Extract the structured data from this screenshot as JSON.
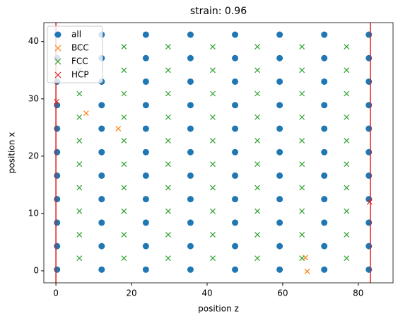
{
  "chart_data": {
    "type": "scatter",
    "title": "strain: 0.96",
    "xlabel": "position z",
    "ylabel": "position x",
    "xlim": [
      -3.2,
      89.2
    ],
    "ylim": [
      -2.1,
      43.3
    ],
    "xticks": [
      0,
      20,
      40,
      60,
      80
    ],
    "yticks": [
      0,
      10,
      20,
      30,
      40
    ],
    "legend": "upper left",
    "vlines": [
      0,
      83.2
    ],
    "vline_color": "#d62020",
    "series": [
      {
        "name": "all",
        "marker": "o",
        "color": "#1f77b4",
        "x": [
          0.3,
          12.1,
          23.8,
          35.6,
          47.4,
          59.2,
          71.0,
          82.8,
          0.3,
          12.1,
          23.8,
          35.6,
          47.4,
          59.2,
          71.0,
          82.8,
          0.3,
          12.1,
          23.8,
          35.6,
          47.4,
          59.2,
          71.0,
          82.8,
          0.3,
          12.1,
          23.8,
          35.6,
          47.4,
          59.2,
          71.0,
          82.8,
          0.3,
          12.1,
          23.8,
          35.6,
          47.4,
          59.2,
          71.0,
          82.8,
          0.3,
          12.1,
          23.8,
          35.6,
          47.4,
          59.2,
          71.0,
          82.8,
          0.3,
          12.1,
          23.8,
          35.6,
          47.4,
          59.2,
          71.0,
          82.8,
          0.3,
          12.1,
          23.8,
          35.6,
          47.4,
          59.2,
          71.0,
          82.8,
          0.3,
          12.1,
          23.8,
          35.6,
          47.4,
          59.2,
          71.0,
          82.8,
          0.3,
          12.1,
          23.8,
          35.6,
          47.4,
          59.2,
          71.0,
          82.8,
          0.3,
          12.1,
          23.8,
          35.6,
          47.4,
          59.2,
          71.0,
          82.8
        ],
        "y": [
          0.2,
          0.2,
          0.2,
          0.2,
          0.2,
          0.2,
          0.2,
          0.2,
          4.3,
          4.3,
          4.3,
          4.3,
          4.3,
          4.3,
          4.3,
          4.3,
          8.4,
          8.4,
          8.4,
          8.4,
          8.4,
          8.4,
          8.4,
          8.4,
          12.5,
          12.5,
          12.5,
          12.5,
          12.5,
          12.5,
          12.5,
          12.5,
          16.6,
          16.6,
          16.6,
          16.6,
          16.6,
          16.6,
          16.6,
          16.6,
          20.7,
          20.7,
          20.7,
          20.7,
          20.7,
          20.7,
          20.7,
          20.7,
          24.8,
          24.8,
          24.8,
          24.8,
          24.8,
          24.8,
          24.8,
          24.8,
          28.9,
          28.9,
          28.9,
          28.9,
          28.9,
          28.9,
          28.9,
          28.9,
          33.0,
          33.0,
          33.0,
          33.0,
          33.0,
          33.0,
          33.0,
          33.0,
          37.1,
          37.1,
          37.1,
          37.1,
          37.1,
          37.1,
          37.1,
          37.1,
          41.2,
          41.2,
          41.2,
          41.2,
          41.2,
          41.2,
          41.2,
          41.2
        ]
      },
      {
        "name": "BCC",
        "marker": "x",
        "color": "#ff7f0e",
        "x": [
          8.0,
          16.5,
          66.0,
          66.5
        ],
        "y": [
          27.5,
          24.8,
          2.3,
          -0.1
        ]
      },
      {
        "name": "FCC",
        "marker": "x",
        "color": "#2ca02c",
        "x": [
          6.2,
          18.0,
          29.7,
          41.5,
          53.3,
          65.1,
          76.9,
          6.2,
          18.0,
          29.7,
          41.5,
          53.3,
          65.1,
          76.9,
          6.2,
          18.0,
          29.7,
          41.5,
          53.3,
          65.1,
          76.9,
          6.2,
          18.0,
          29.7,
          41.5,
          53.3,
          65.1,
          76.9,
          6.2,
          18.0,
          29.7,
          41.5,
          53.3,
          65.1,
          76.9,
          6.2,
          18.0,
          29.7,
          41.5,
          53.3,
          65.1,
          76.9,
          6.2,
          18.0,
          29.7,
          41.5,
          53.3,
          65.1,
          76.9,
          6.2,
          18.0,
          29.7,
          41.5,
          53.3,
          65.1,
          76.9,
          6.2,
          18.0,
          29.7,
          41.5,
          53.3,
          65.1,
          76.9,
          6.2,
          18.0,
          29.7,
          41.5,
          53.3,
          65.1,
          76.9
        ],
        "y": [
          2.2,
          2.2,
          2.2,
          2.2,
          2.2,
          2.2,
          2.2,
          6.3,
          6.3,
          6.3,
          6.3,
          6.3,
          6.3,
          6.3,
          10.4,
          10.4,
          10.4,
          10.4,
          10.4,
          10.4,
          10.4,
          14.5,
          14.5,
          14.5,
          14.5,
          14.5,
          14.5,
          14.5,
          18.6,
          18.6,
          18.6,
          18.6,
          18.6,
          18.6,
          18.6,
          22.7,
          22.7,
          22.7,
          22.7,
          22.7,
          22.7,
          22.7,
          26.8,
          26.8,
          26.8,
          26.8,
          26.8,
          26.8,
          26.8,
          30.9,
          30.9,
          30.9,
          30.9,
          30.9,
          30.9,
          30.9,
          35.0,
          35.0,
          35.0,
          35.0,
          35.0,
          35.0,
          35.0,
          39.1,
          39.1,
          39.1,
          39.1,
          39.1,
          39.1,
          39.1
        ]
      },
      {
        "name": "HCP",
        "marker": "x",
        "color": "#d62728",
        "x": [
          0.2,
          83.0
        ],
        "y": [
          29.5,
          12.0
        ]
      }
    ]
  }
}
